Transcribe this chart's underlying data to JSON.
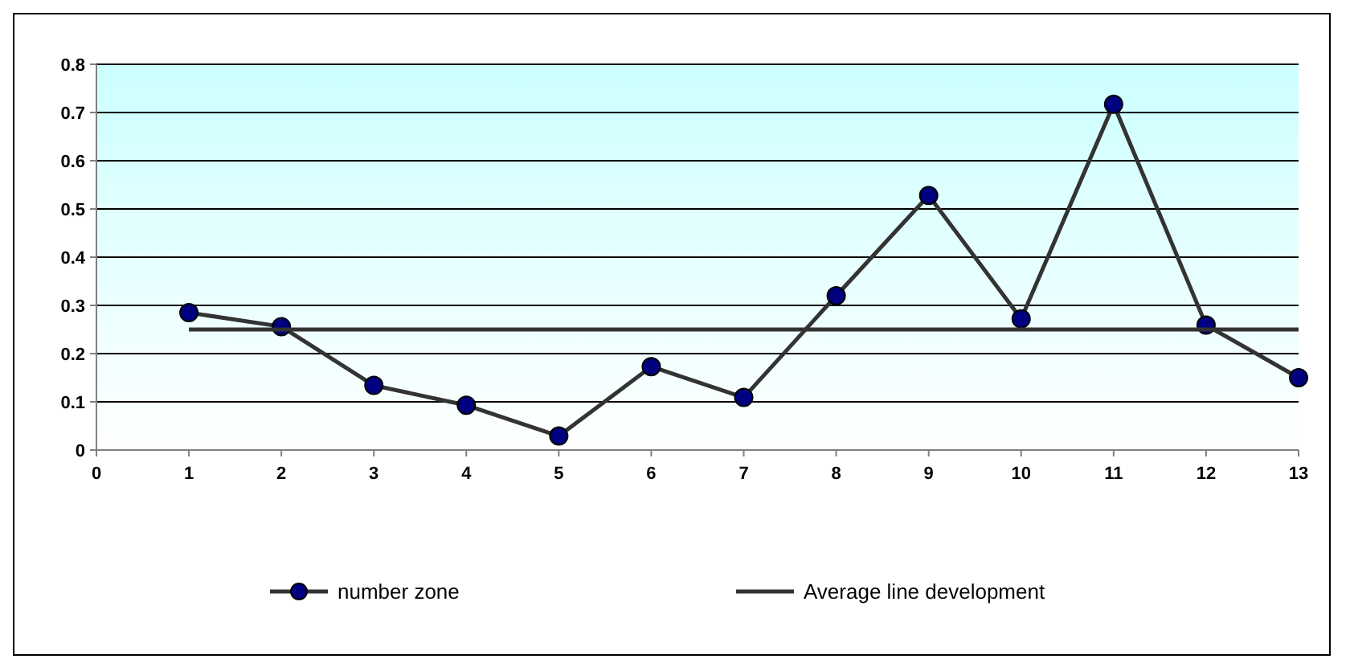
{
  "chart_data": {
    "type": "line",
    "xlim": [
      0,
      13
    ],
    "xticks": [
      0,
      1,
      2,
      3,
      4,
      5,
      6,
      7,
      8,
      9,
      10,
      11,
      12,
      13
    ],
    "ylim": [
      0,
      0.8
    ],
    "yticks": [
      0,
      0.1,
      0.2,
      0.3,
      0.4,
      0.5,
      0.6,
      0.7,
      0.8
    ],
    "grid": "y",
    "legend": "bottom",
    "series": [
      {
        "name": "number zone",
        "color": "#000080",
        "marker": "circle",
        "x": [
          1,
          2,
          3,
          4,
          5,
          6,
          7,
          8,
          9,
          10,
          11,
          12,
          13
        ],
        "values": [
          0.285,
          0.256,
          0.134,
          0.093,
          0.029,
          0.173,
          0.109,
          0.32,
          0.528,
          0.272,
          0.717,
          0.259,
          0.15
        ]
      },
      {
        "name": "Average line development",
        "color": "#333333",
        "marker": "none",
        "x": [
          1,
          13
        ],
        "values": [
          0.25,
          0.25
        ]
      }
    ]
  }
}
